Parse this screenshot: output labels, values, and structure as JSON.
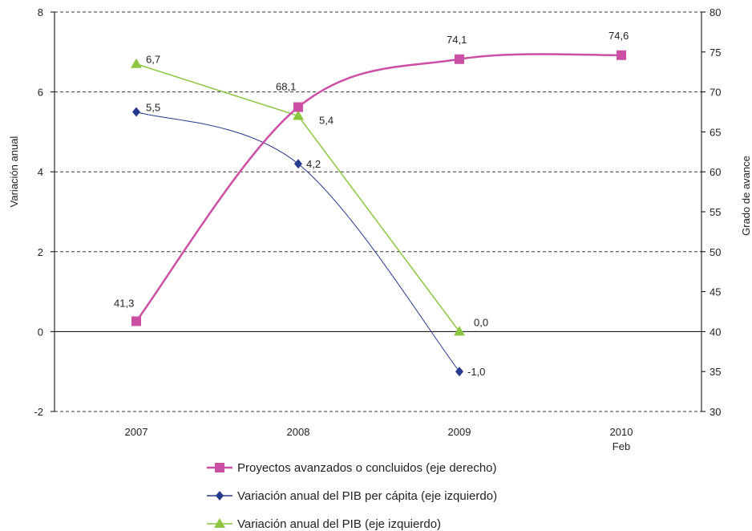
{
  "chart_data": {
    "type": "line",
    "categories": [
      "2007",
      "2008",
      "2009",
      "2010"
    ],
    "category_sublabels": [
      "",
      "",
      "",
      "Feb"
    ],
    "y_left": {
      "label": "Variación anual",
      "range": [
        -2,
        8
      ],
      "ticks": [
        -2,
        0,
        2,
        4,
        6,
        8
      ]
    },
    "y_right": {
      "label": "Grado de avance",
      "range": [
        30,
        80
      ],
      "ticks": [
        30,
        35,
        40,
        45,
        50,
        55,
        60,
        65,
        70,
        75,
        80
      ]
    },
    "grid": "dashed horizontal at left-axis ticks",
    "legend_position": "bottom",
    "series": [
      {
        "name": "Proyectos avanzados o concluidos (eje derecho)",
        "axis": "right",
        "marker": "square",
        "color": "#cc4fa6",
        "values": [
          41.3,
          68.1,
          74.1,
          74.6
        ],
        "labels": [
          "41,3",
          "68,1",
          "74,1",
          "74,6"
        ]
      },
      {
        "name": "Variación anual del PIB per cápita (eje izquierdo)",
        "axis": "left",
        "marker": "diamond",
        "color": "#253a8c",
        "values": [
          5.5,
          4.2,
          -1.0,
          null
        ],
        "labels": [
          "5,5",
          "4,2",
          "-1,0",
          ""
        ]
      },
      {
        "name": "Variación anual del PIB (eje izquierdo)",
        "axis": "left",
        "marker": "triangle",
        "color": "#8cc63f",
        "values": [
          6.7,
          5.4,
          0.0,
          null
        ],
        "labels": [
          "6,7",
          "5,4",
          "0,0",
          ""
        ]
      }
    ]
  }
}
